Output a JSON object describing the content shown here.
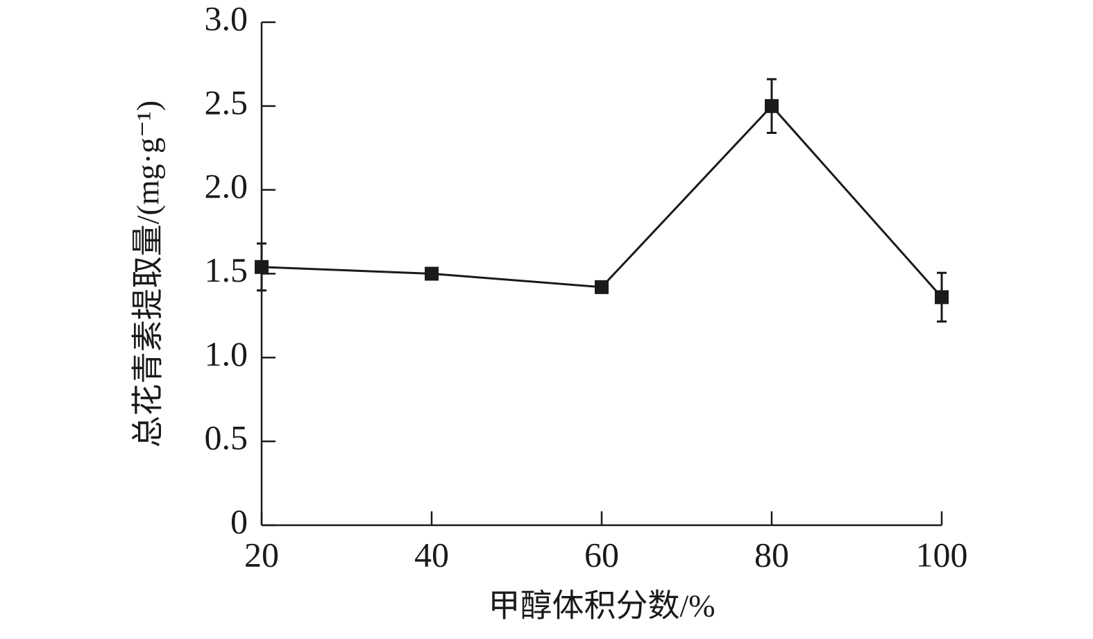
{
  "chart_data": {
    "type": "line",
    "xlabel": "甲醇体积分数/%",
    "ylabel": "总花青素提取量/(mg·g⁻¹)",
    "x": [
      20,
      40,
      60,
      80,
      100
    ],
    "values": [
      1.54,
      1.5,
      1.42,
      2.5,
      1.36
    ],
    "errors": [
      0.14,
      0.02,
      0.03,
      0.16,
      0.145
    ],
    "color": "#1a1a1a",
    "xlim": [
      20,
      100
    ],
    "xticks": [
      20,
      40,
      60,
      80,
      100
    ],
    "ylim": [
      0,
      3
    ],
    "yticks": [
      0,
      0.5,
      {
        "value": 1,
        "label": "1.0"
      },
      1.5,
      {
        "value": 2,
        "label": "2.0"
      },
      2.5,
      {
        "value": 3,
        "label": "3.0"
      }
    ]
  }
}
